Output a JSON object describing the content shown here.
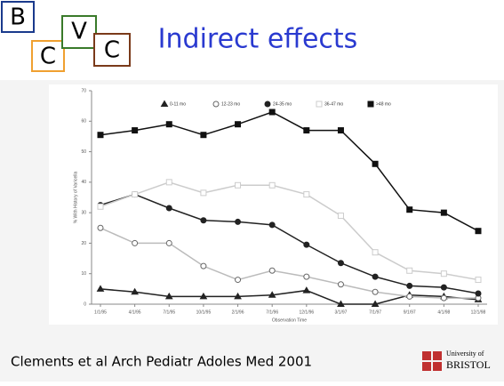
{
  "slide": {
    "logo": [
      "B",
      "C",
      "V",
      "C"
    ],
    "title": "Indirect effects",
    "citation": "Clements et al Arch Pediatr Adoles Med 2001",
    "university": [
      "University of",
      "BRISTOL"
    ]
  },
  "chart_data": {
    "type": "line",
    "x_label": "Observation Time",
    "y_label": "% With History of Varicella",
    "categories": [
      "1/1/95",
      "4/1/95",
      "7/1/95",
      "10/1/95",
      "2/1/96",
      "7/1/96",
      "12/1/96",
      "3/1/97",
      "7/1/97",
      "9/1/97",
      "4/1/98",
      "12/1/98"
    ],
    "series": [
      {
        "name": "0-11 mo",
        "color": "#222222",
        "marker": "triangle",
        "values": [
          5,
          4,
          2.5,
          2.5,
          2.5,
          3,
          4.5,
          0,
          0,
          3,
          2.5,
          1.5
        ]
      },
      {
        "name": "12-23 mo",
        "color": "#bbbbbb",
        "marker": "open-circle",
        "values": [
          25,
          20,
          20,
          12.5,
          8,
          11,
          9,
          6.5,
          4,
          2.5,
          2,
          2
        ]
      },
      {
        "name": "24-35 mo",
        "color": "#222222",
        "marker": "circle",
        "values": [
          32.5,
          36,
          31.5,
          27.5,
          27,
          26,
          19.5,
          13.5,
          9,
          6,
          5.5,
          3.5
        ]
      },
      {
        "name": "36-47 mo",
        "color": "#cccccc",
        "marker": "open-square",
        "values": [
          32,
          36,
          40,
          36.5,
          39,
          39,
          36,
          29,
          17,
          11,
          10,
          8
        ]
      },
      {
        "name": ">48 mo",
        "color": "#111111",
        "marker": "square",
        "values": [
          55.5,
          57,
          59,
          55.5,
          59,
          63,
          57,
          57,
          46,
          31,
          30,
          24
        ]
      }
    ],
    "ylim": [
      0,
      70
    ],
    "yticks": [
      0,
      10,
      20,
      30,
      40,
      50,
      60,
      70
    ],
    "legend": "top"
  }
}
